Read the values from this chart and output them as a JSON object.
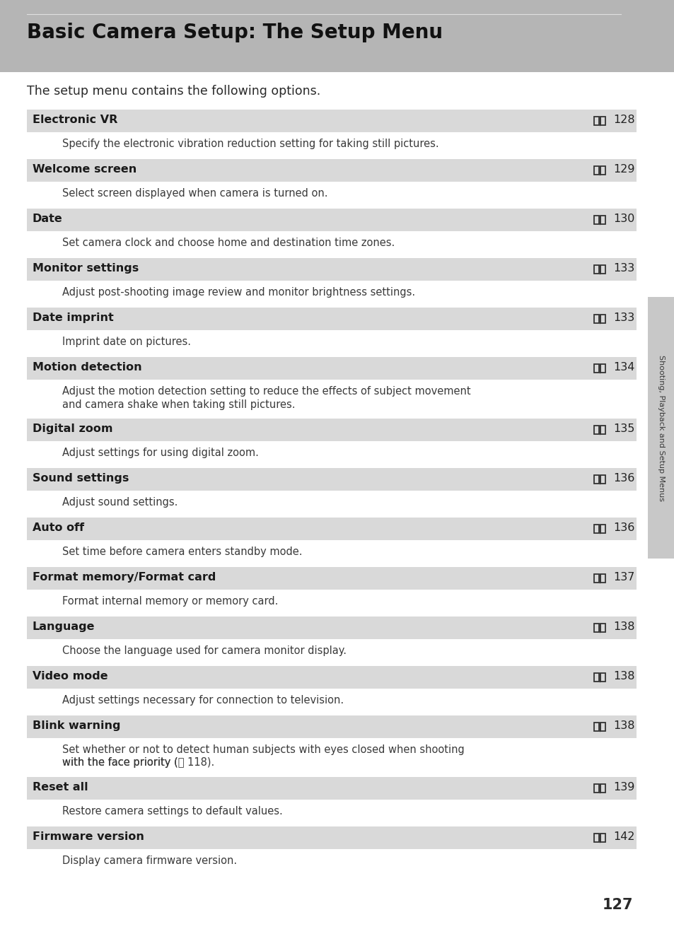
{
  "title": "Basic Camera Setup: The Setup Menu",
  "intro": "The setup menu contains the following options.",
  "header_bg": "#b5b5b5",
  "row_bg": "#d9d9d9",
  "white_bg": "#ffffff",
  "desc_color": "#3a3a3a",
  "page_number": "127",
  "side_label": "Shooting, Playback and Setup Menus",
  "side_tab_color": "#c8c8c8",
  "entries": [
    {
      "title": "Electronic VR",
      "page_ref": "128",
      "description": "Specify the electronic vibration reduction setting for taking still pictures.",
      "desc_lines": 1
    },
    {
      "title": "Welcome screen",
      "page_ref": "129",
      "description": "Select screen displayed when camera is turned on.",
      "desc_lines": 1
    },
    {
      "title": "Date",
      "page_ref": "130",
      "description": "Set camera clock and choose home and destination time zones.",
      "desc_lines": 1
    },
    {
      "title": "Monitor settings",
      "page_ref": "133",
      "description": "Adjust post-shooting image review and monitor brightness settings.",
      "desc_lines": 1
    },
    {
      "title": "Date imprint",
      "page_ref": "133",
      "description": "Imprint date on pictures.",
      "desc_lines": 1
    },
    {
      "title": "Motion detection",
      "page_ref": "134",
      "description": "Adjust the motion detection setting to reduce the effects of subject movement\nand camera shake when taking still pictures.",
      "desc_lines": 2
    },
    {
      "title": "Digital zoom",
      "page_ref": "135",
      "description": "Adjust settings for using digital zoom.",
      "desc_lines": 1
    },
    {
      "title": "Sound settings",
      "page_ref": "136",
      "description": "Adjust sound settings.",
      "desc_lines": 1
    },
    {
      "title": "Auto off",
      "page_ref": "136",
      "description": "Set time before camera enters standby mode.",
      "desc_lines": 1
    },
    {
      "title": "Format memory/Format card",
      "page_ref": "137",
      "description": "Format internal memory or memory card.",
      "desc_lines": 1
    },
    {
      "title": "Language",
      "page_ref": "138",
      "description": "Choose the language used for camera monitor display.",
      "desc_lines": 1
    },
    {
      "title": "Video mode",
      "page_ref": "138",
      "description": "Adjust settings necessary for connection to television.",
      "desc_lines": 1
    },
    {
      "title": "Blink warning",
      "page_ref": "138",
      "description": "Set whether or not to detect human subjects with eyes closed when shooting\nwith the face priority (📖 118).",
      "desc_lines": 2
    },
    {
      "title": "Reset all",
      "page_ref": "139",
      "description": "Restore camera settings to default values.",
      "desc_lines": 1
    },
    {
      "title": "Firmware version",
      "page_ref": "142",
      "description": "Display camera firmware version.",
      "desc_lines": 1
    }
  ]
}
